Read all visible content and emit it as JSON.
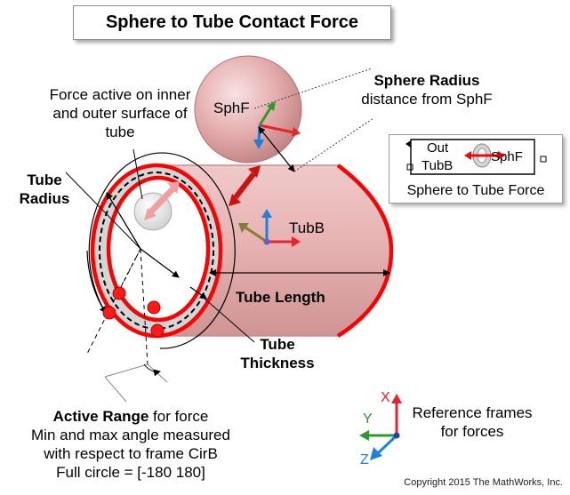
{
  "title": "Sphere to Tube Contact Force",
  "labels": {
    "force_active": "Force active on inner and outer surface of tube",
    "sphere_radius_bold": "Sphere Radius",
    "sphere_radius_desc": "distance from SphF",
    "tube_radius": "Tube Radius",
    "tube_length": "Tube Length",
    "tube_thickness": "Tube Thickness",
    "sphf_frame": "SphF",
    "tubb_frame": "TubB",
    "active_range_bold": "Active Range",
    "active_range_rest": " for force",
    "active_range_line2": "Min and max angle measured",
    "active_range_line3": "with respect to frame CirB",
    "active_range_line4": "Full circle = [-180 180]",
    "reference_frames": "Reference frames for forces",
    "copyright": "Copyright 2015 The MathWorks, Inc."
  },
  "block": {
    "port_out": "Out",
    "port_tubb": "TubB",
    "port_sphf": "SphF",
    "name": "Sphere to Tube Force"
  },
  "axes": {
    "x": "X",
    "y": "Y",
    "z": "Z"
  },
  "colors": {
    "tube": "#e9b8b8",
    "tube_edge": "#c88e8e",
    "highlight": "#ff0000",
    "x_axis": "#e8232a",
    "y_axis": "#2e9a2e",
    "z_axis": "#1f7fe0"
  }
}
